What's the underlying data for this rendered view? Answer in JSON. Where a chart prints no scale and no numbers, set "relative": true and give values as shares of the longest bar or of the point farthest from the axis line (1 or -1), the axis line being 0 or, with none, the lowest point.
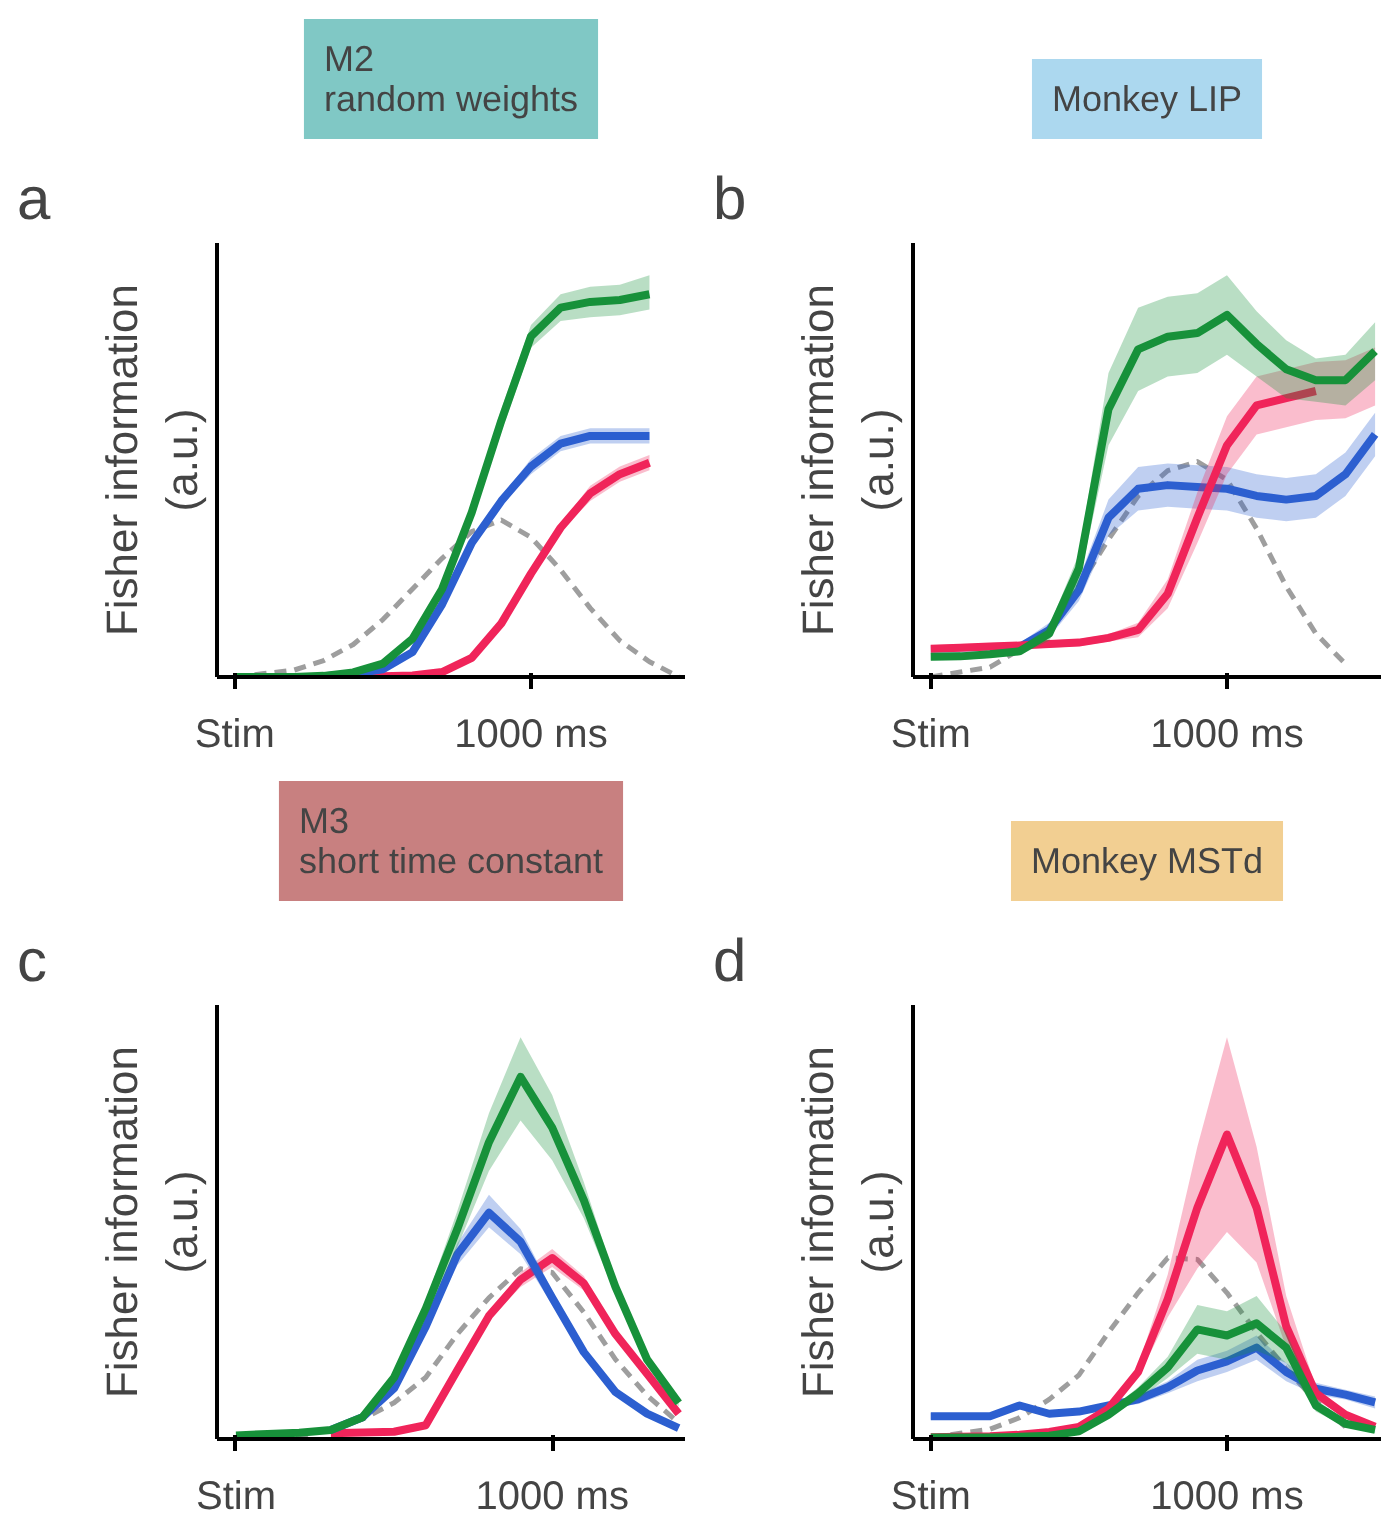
{
  "chart_data": [
    {
      "type": "line",
      "title": "M2\nrandom weights",
      "ylabel": "Fisher information\n(a.u.)",
      "relative": true,
      "annotations": [
        "a"
      ],
      "categories": [
        "Stim",
        null,
        null,
        null,
        null,
        null,
        null,
        null,
        null,
        null,
        "1000 ms",
        null,
        null,
        null,
        null,
        null
      ],
      "series": [
        {
          "color": "#9e9e9e",
          "line_style": "dashed",
          "values": [
            0,
            0.009,
            0.018,
            0.043,
            0.085,
            0.15,
            0.23,
            0.31,
            0.38,
            0.41,
            0.365,
            0.28,
            0.18,
            0.095,
            0.04,
            0
          ]
        },
        {
          "color": "#f0245a",
          "values": [
            null,
            null,
            null,
            null,
            0,
            0.002,
            0.004,
            0.013,
            0.05,
            0.14,
            0.27,
            0.39,
            0.48,
            0.53,
            0.56,
            null
          ],
          "lower": [
            null,
            null,
            null,
            null,
            0,
            0,
            0,
            0.008,
            0.04,
            0.13,
            0.26,
            0.38,
            0.46,
            0.51,
            0.54,
            null
          ],
          "upper": [
            null,
            null,
            null,
            null,
            0,
            0.004,
            0.008,
            0.018,
            0.06,
            0.15,
            0.28,
            0.4,
            0.5,
            0.55,
            0.58,
            null
          ]
        },
        {
          "color": "#2c5fd0",
          "values": [
            null,
            null,
            null,
            0.002,
            0.008,
            0.02,
            0.065,
            0.19,
            0.35,
            0.46,
            0.55,
            0.61,
            0.63,
            0.63,
            0.63,
            null
          ],
          "lower": [
            null,
            null,
            null,
            0,
            0.003,
            0.015,
            0.055,
            0.18,
            0.34,
            0.45,
            0.53,
            0.59,
            0.61,
            0.61,
            0.61,
            null
          ],
          "upper": [
            null,
            null,
            null,
            0.004,
            0.013,
            0.025,
            0.075,
            0.2,
            0.36,
            0.47,
            0.57,
            0.63,
            0.65,
            0.65,
            0.65,
            null
          ]
        },
        {
          "color": "#17913a",
          "values": [
            0,
            0,
            0,
            0.003,
            0.012,
            0.035,
            0.1,
            0.23,
            0.43,
            0.67,
            0.89,
            0.965,
            0.98,
            0.985,
            1.0,
            null
          ],
          "lower": [
            0,
            0,
            0,
            0,
            0.007,
            0.03,
            0.09,
            0.22,
            0.41,
            0.64,
            0.86,
            0.93,
            0.94,
            0.945,
            0.96,
            null
          ],
          "upper": [
            0,
            0,
            0,
            0.006,
            0.017,
            0.04,
            0.11,
            0.24,
            0.45,
            0.7,
            0.92,
            1.0,
            1.02,
            1.025,
            1.05,
            null
          ]
        }
      ]
    },
    {
      "type": "line",
      "title": "Monkey LIP",
      "ylabel": "Fisher information\n(a.u.)",
      "relative": true,
      "annotations": [
        "b"
      ],
      "categories": [
        "Stim",
        null,
        null,
        null,
        null,
        null,
        null,
        null,
        null,
        null,
        "1000 ms",
        null,
        null,
        null,
        null,
        null
      ],
      "series": [
        {
          "color": "#9e9e9e",
          "line_style": "dashed",
          "values": [
            0,
            0.014,
            0.027,
            0.076,
            0.134,
            0.25,
            0.38,
            0.5,
            0.57,
            0.595,
            0.545,
            0.41,
            0.25,
            0.12,
            0.036,
            null
          ]
        },
        {
          "color": "#2c5fd0",
          "values": [
            null,
            null,
            0.078,
            0.083,
            0.13,
            0.24,
            0.44,
            0.52,
            0.53,
            0.525,
            0.52,
            0.5,
            0.49,
            0.5,
            0.56,
            0.67
          ],
          "lower": [
            0.065,
            0.065,
            0.068,
            0.073,
            0.11,
            0.21,
            0.39,
            0.46,
            0.47,
            0.465,
            0.46,
            0.44,
            0.43,
            0.44,
            0.5,
            0.61
          ],
          "upper": [
            0.085,
            0.085,
            0.088,
            0.093,
            0.15,
            0.27,
            0.49,
            0.58,
            0.59,
            0.585,
            0.58,
            0.56,
            0.55,
            0.56,
            0.62,
            0.73
          ]
        },
        {
          "color": "#f0245a",
          "values": [
            0.078,
            0.081,
            0.084,
            0.087,
            0.091,
            0.095,
            0.108,
            0.13,
            0.23,
            0.44,
            0.64,
            0.75,
            0.77,
            0.79,
            null,
            null
          ],
          "lower": [
            0.068,
            0.071,
            0.074,
            0.077,
            0.081,
            0.085,
            0.098,
            0.11,
            0.19,
            0.37,
            0.56,
            0.67,
            0.69,
            0.71,
            0.715,
            0.75
          ],
          "upper": [
            0.088,
            0.091,
            0.094,
            0.097,
            0.101,
            0.105,
            0.118,
            0.15,
            0.27,
            0.51,
            0.72,
            0.83,
            0.85,
            0.87,
            0.875,
            0.91
          ]
        },
        {
          "color": "#17913a",
          "values": [
            0.056,
            0.057,
            0.063,
            0.071,
            0.12,
            0.3,
            0.74,
            0.905,
            0.94,
            0.95,
            1.0,
            0.92,
            0.85,
            0.82,
            0.82,
            0.9
          ],
          "lower": [
            0.046,
            0.047,
            0.053,
            0.061,
            0.1,
            0.26,
            0.64,
            0.79,
            0.83,
            0.84,
            0.89,
            0.83,
            0.77,
            0.76,
            0.75,
            0.82
          ],
          "upper": [
            0.066,
            0.067,
            0.073,
            0.081,
            0.14,
            0.34,
            0.84,
            1.02,
            1.05,
            1.06,
            1.11,
            1.01,
            0.93,
            0.88,
            0.89,
            0.98
          ]
        }
      ]
    },
    {
      "type": "line",
      "title": "M3\nshort time constant",
      "ylabel": "Fisher information\n(a.u.)",
      "relative": true,
      "annotations": [
        "c"
      ],
      "categories": [
        "Stim",
        null,
        null,
        null,
        null,
        null,
        null,
        null,
        null,
        null,
        "1000 ms",
        null,
        null,
        null,
        null
      ],
      "series": [
        {
          "color": "#9e9e9e",
          "line_style": "dashed",
          "values": [
            0,
            0.004,
            0.008,
            0.027,
            0.055,
            0.1,
            0.17,
            0.29,
            0.39,
            0.47,
            0.46,
            0.35,
            0.22,
            0.12,
            0.045
          ]
        },
        {
          "color": "#f0245a",
          "values": [
            null,
            null,
            null,
            0.016,
            0.018,
            0.02,
            0.038,
            0.19,
            0.34,
            0.44,
            0.5,
            0.43,
            0.29,
            0.18,
            0.07
          ],
          "lower": [
            0.01,
            0.012,
            0.014,
            0.016,
            0.018,
            0.02,
            0.035,
            0.18,
            0.33,
            0.42,
            0.475,
            0.41,
            0.28,
            0.175,
            0.07
          ],
          "upper": [
            0.01,
            0.012,
            0.014,
            0.016,
            0.018,
            0.02,
            0.041,
            0.2,
            0.35,
            0.46,
            0.525,
            0.45,
            0.3,
            0.185,
            0.07
          ]
        },
        {
          "color": "#2c5fd0",
          "values": [
            null,
            null,
            null,
            0.025,
            0.06,
            0.14,
            0.31,
            0.51,
            0.625,
            0.545,
            0.39,
            0.24,
            0.13,
            0.07,
            0.03
          ],
          "lower": [
            0.01,
            0.014,
            0.017,
            0.025,
            0.055,
            0.13,
            0.3,
            0.48,
            0.585,
            0.51,
            0.37,
            0.23,
            0.12,
            0.065,
            0.03
          ],
          "upper": [
            0.01,
            0.014,
            0.017,
            0.025,
            0.065,
            0.15,
            0.32,
            0.54,
            0.675,
            0.58,
            0.41,
            0.25,
            0.14,
            0.075,
            0.03
          ]
        },
        {
          "color": "#17913a",
          "values": [
            0.01,
            0.014,
            0.017,
            0.025,
            0.06,
            0.17,
            0.36,
            0.58,
            0.82,
            1.0,
            0.86,
            0.66,
            0.42,
            0.22,
            0.1
          ],
          "lower": [
            0.01,
            0.014,
            0.017,
            0.025,
            0.055,
            0.16,
            0.34,
            0.53,
            0.74,
            0.88,
            0.77,
            0.61,
            0.4,
            0.21,
            0.09
          ],
          "upper": [
            0.01,
            0.014,
            0.017,
            0.025,
            0.065,
            0.18,
            0.38,
            0.63,
            0.9,
            1.11,
            0.95,
            0.71,
            0.44,
            0.23,
            0.11
          ]
        }
      ]
    },
    {
      "type": "line",
      "title": "Monkey MSTd",
      "ylabel": "Fisher information\n(a.u.)",
      "relative": true,
      "annotations": [
        "d"
      ],
      "categories": [
        "Stim",
        null,
        null,
        null,
        null,
        null,
        null,
        null,
        null,
        null,
        "1000 ms",
        null,
        null,
        null,
        null,
        null
      ],
      "series": [
        {
          "color": "#9e9e9e",
          "line_style": "dashed",
          "values": [
            0.005,
            0.019,
            0.032,
            0.07,
            0.13,
            0.21,
            0.35,
            0.48,
            0.595,
            0.59,
            0.48,
            0.35,
            0.23,
            0.125,
            0.04,
            null
          ]
        },
        {
          "color": "#2c5fd0",
          "values": [
            0.075,
            0.075,
            0.075,
            0.11,
            0.083,
            0.09,
            0.11,
            0.13,
            0.17,
            0.225,
            0.255,
            0.3,
            0.22,
            0.165,
            0.146,
            0.12
          ],
          "lower": [
            0.065,
            0.065,
            0.065,
            0.1,
            0.073,
            0.08,
            0.1,
            0.115,
            0.15,
            0.19,
            0.22,
            0.26,
            0.19,
            0.145,
            0.13,
            0.1
          ],
          "upper": [
            0.085,
            0.085,
            0.085,
            0.12,
            0.093,
            0.1,
            0.12,
            0.145,
            0.19,
            0.26,
            0.29,
            0.34,
            0.25,
            0.185,
            0.162,
            0.14
          ]
        },
        {
          "color": "#f0245a",
          "values": [
            0.006,
            0.007,
            0.009,
            0.014,
            0.023,
            0.04,
            0.1,
            0.22,
            0.46,
            0.76,
            1.0,
            0.76,
            0.37,
            0.15,
            0.08,
            0.04
          ],
          "lower": [
            0.006,
            0.007,
            0.009,
            0.014,
            0.023,
            0.04,
            0.09,
            0.2,
            0.4,
            0.56,
            0.68,
            0.58,
            0.3,
            0.13,
            0.07,
            0.035
          ],
          "upper": [
            0.006,
            0.007,
            0.009,
            0.014,
            0.023,
            0.04,
            0.11,
            0.24,
            0.54,
            0.96,
            1.32,
            0.96,
            0.47,
            0.17,
            0.09,
            0.045
          ]
        },
        {
          "color": "#17913a",
          "values": [
            0.005,
            0.005,
            0.005,
            0.007,
            0.011,
            0.025,
            0.08,
            0.15,
            0.235,
            0.36,
            0.34,
            0.38,
            0.3,
            0.11,
            0.05,
            0.03
          ],
          "lower": [
            0.005,
            0.005,
            0.005,
            0.007,
            0.011,
            0.025,
            0.07,
            0.13,
            0.2,
            0.28,
            0.26,
            0.29,
            0.25,
            0.09,
            0.04,
            0.02
          ],
          "upper": [
            0.005,
            0.005,
            0.005,
            0.007,
            0.011,
            0.025,
            0.09,
            0.17,
            0.27,
            0.44,
            0.42,
            0.47,
            0.35,
            0.13,
            0.06,
            0.04
          ]
        }
      ]
    }
  ]
}
